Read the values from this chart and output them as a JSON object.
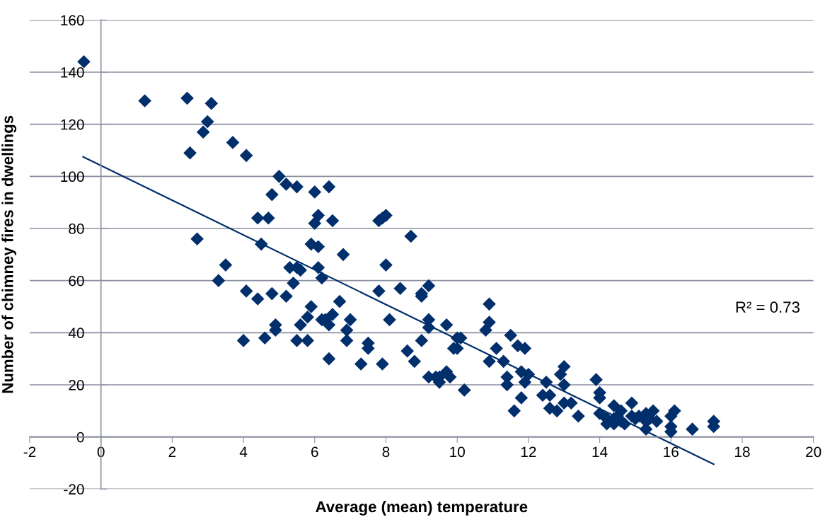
{
  "chart_data": {
    "type": "scatter",
    "xlabel": "Average (mean) temperature",
    "ylabel": "Number of chimney fires in dwellings",
    "annotations": [
      "R² = 0.73"
    ],
    "marker": "diamond",
    "grid": "y",
    "xlim": [
      -2,
      20
    ],
    "xticks": [
      -2,
      0,
      2,
      4,
      6,
      8,
      10,
      12,
      14,
      16,
      18,
      20
    ],
    "ylim": [
      -20,
      160
    ],
    "yticks": [
      -20,
      0,
      20,
      40,
      60,
      80,
      100,
      120,
      140,
      160
    ],
    "series": [
      {
        "color": "#002f6c",
        "x": [
          -0.48,
          1.23,
          2.42,
          2.5,
          2.87,
          2.99,
          3.1,
          2.7,
          3.3,
          3.5,
          3.7,
          4.08,
          4.0,
          4.08,
          4.4,
          4.4,
          4.5,
          4.7,
          4.6,
          4.8,
          4.8,
          4.9,
          4.9,
          5.0,
          5.2,
          5.5,
          5.2,
          5.3,
          5.4,
          5.5,
          5.5,
          5.6,
          5.6,
          5.8,
          5.8,
          5.9,
          6.0,
          6.0,
          6.1,
          5.9,
          6.1,
          6.1,
          6.2,
          6.2,
          6.3,
          6.4,
          6.4,
          6.4,
          6.5,
          6.5,
          6.7,
          6.8,
          6.9,
          6.9,
          7.0,
          7.3,
          7.5,
          7.5,
          7.8,
          7.8,
          7.9,
          8.0,
          7.9,
          8.0,
          8.1,
          8.4,
          8.6,
          8.7,
          8.8,
          9.0,
          9.0,
          9.2,
          9.0,
          9.2,
          9.2,
          9.2,
          9.4,
          9.5,
          9.5,
          9.7,
          9.7,
          9.8,
          9.9,
          10.0,
          10.0,
          10.1,
          10.2,
          10.8,
          10.9,
          10.9,
          10.9,
          11.1,
          11.3,
          11.4,
          11.4,
          11.5,
          11.6,
          11.7,
          11.8,
          11.8,
          11.9,
          11.9,
          12.0,
          12.4,
          12.5,
          12.6,
          12.6,
          12.8,
          12.9,
          13.0,
          13.0,
          13.0,
          13.2,
          13.4,
          13.9,
          14.0,
          14.0,
          14.0,
          14.2,
          14.2,
          14.4,
          14.4,
          14.4,
          14.5,
          14.6,
          14.6,
          14.7,
          14.9,
          14.9,
          15.0,
          15.1,
          15.3,
          15.3,
          15.3,
          15.4,
          15.5,
          15.6,
          16.0,
          16.0,
          16.0,
          16.1,
          16.6,
          17.2,
          17.2
        ],
        "values": [
          144,
          129,
          130,
          109,
          117,
          121,
          128,
          76,
          60,
          66,
          113,
          108,
          37,
          56,
          53,
          84,
          74,
          84,
          38,
          93,
          55,
          43,
          41,
          100,
          97,
          96,
          54,
          65,
          59,
          37,
          65,
          64,
          43,
          46,
          37,
          50,
          94,
          82,
          85,
          74,
          73,
          65,
          61,
          45,
          45,
          96,
          30,
          43,
          47,
          83,
          52,
          70,
          37,
          41,
          45,
          28,
          36,
          34,
          56,
          83,
          84,
          85,
          28,
          66,
          45,
          57,
          33,
          77,
          29,
          54,
          55,
          58,
          37,
          45,
          42,
          23,
          23,
          23,
          21,
          25,
          43,
          23,
          34,
          38,
          34,
          38,
          18,
          41,
          51,
          44,
          29,
          34,
          29,
          20,
          23,
          39,
          10,
          35,
          25,
          15,
          34,
          21,
          24,
          16,
          21,
          11,
          16,
          10,
          24,
          27,
          20,
          13,
          13,
          8,
          22,
          17,
          15,
          9,
          7,
          5,
          7,
          12,
          5,
          8,
          6,
          10,
          5,
          8,
          13,
          7,
          8,
          3,
          9,
          6,
          7,
          10,
          6,
          8,
          4,
          2,
          10,
          3,
          6,
          4
        ]
      },
      {
        "type": "line",
        "color": "#002f6c",
        "marker": "none",
        "x": [
          -0.5,
          17.2
        ],
        "values": [
          107.5,
          -10.5
        ]
      }
    ]
  }
}
